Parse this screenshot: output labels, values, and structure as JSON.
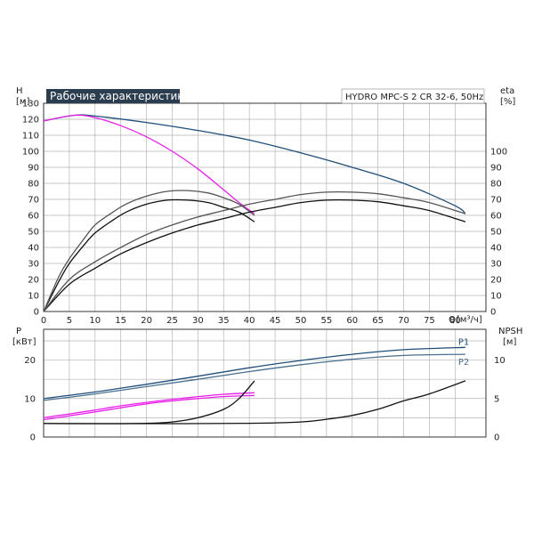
{
  "chart_data": [
    {
      "type": "line",
      "title": "Рабочие характеристики",
      "subtitle": "HYDRO MPC-S 2 CR 32-6, 50Hz",
      "left_axis": {
        "label": "H",
        "unit": "[м]",
        "range": [
          0,
          130
        ],
        "ticks": [
          0,
          10,
          20,
          30,
          40,
          50,
          60,
          70,
          80,
          90,
          100,
          110,
          120,
          130
        ]
      },
      "right_axis": {
        "label": "eta",
        "unit": "[%]",
        "range": [
          0,
          130
        ],
        "ticks": [
          0,
          10,
          20,
          30,
          40,
          50,
          60,
          70,
          80,
          90,
          100
        ]
      },
      "x_axis": {
        "label": "Q",
        "unit": "[м³/ч]",
        "range": [
          0,
          86
        ],
        "ticks": [
          0,
          5,
          10,
          15,
          20,
          25,
          30,
          35,
          40,
          45,
          50,
          55,
          60,
          65,
          70,
          75,
          80
        ]
      },
      "grid": true,
      "series": [
        {
          "color": "#1f4e79",
          "axis": "H",
          "x": [
            0,
            6,
            10,
            20,
            30,
            40,
            50,
            60,
            70,
            80,
            82
          ],
          "y": [
            119,
            122.5,
            122,
            118,
            113,
            107,
            99,
            90,
            80,
            66,
            61
          ]
        },
        {
          "color": "#e81ee8",
          "axis": "H",
          "x": [
            0,
            6,
            10,
            15,
            20,
            25,
            30,
            35,
            38,
            41
          ],
          "y": [
            119,
            122.5,
            121,
            116,
            109,
            100,
            89,
            76,
            68,
            61
          ]
        },
        {
          "color": "#111111",
          "axis": "eta",
          "x": [
            0,
            3,
            5,
            8,
            10,
            13,
            16,
            20,
            24,
            28,
            32,
            35,
            38,
            41
          ],
          "y": [
            0,
            19,
            30,
            42,
            49,
            56,
            62,
            67,
            69.5,
            69.5,
            68,
            65,
            62,
            56
          ]
        },
        {
          "color": "#555555",
          "axis": "eta",
          "x": [
            0,
            3,
            5,
            8,
            10,
            13,
            16,
            20,
            24,
            28,
            32,
            35,
            38,
            41
          ],
          "y": [
            0,
            22,
            33,
            46,
            54,
            61,
            67,
            72,
            75,
            75.5,
            74,
            71,
            67,
            60
          ]
        },
        {
          "color": "#111111",
          "axis": "eta",
          "x": [
            0,
            5,
            10,
            15,
            20,
            25,
            30,
            35,
            40,
            45,
            50,
            55,
            60,
            65,
            70,
            75,
            82
          ],
          "y": [
            0,
            17,
            27,
            36,
            43,
            49,
            54,
            58,
            62,
            65,
            68,
            69.5,
            69.5,
            68.5,
            66,
            63,
            56
          ]
        },
        {
          "color": "#555555",
          "axis": "eta",
          "x": [
            0,
            5,
            10,
            15,
            20,
            25,
            30,
            35,
            40,
            45,
            50,
            55,
            60,
            65,
            70,
            75,
            82
          ],
          "y": [
            0,
            20,
            31,
            40,
            48,
            54,
            59,
            63,
            67,
            70,
            73,
            74.5,
            74.5,
            73.5,
            71,
            68,
            61
          ]
        }
      ]
    },
    {
      "type": "line",
      "left_axis": {
        "label": "P",
        "unit": "[кВт]",
        "range": [
          0,
          28
        ],
        "ticks": [
          0,
          10,
          20
        ]
      },
      "right_axis": {
        "label": "NPSH",
        "unit": "[м]",
        "range": [
          0,
          14
        ],
        "ticks": [
          0,
          5,
          10
        ]
      },
      "x_axis": {
        "range": [
          0,
          86
        ]
      },
      "grid": true,
      "series": [
        {
          "name": "P1",
          "color": "#1f4e79",
          "axis": "P",
          "x": [
            0,
            10,
            20,
            30,
            40,
            50,
            60,
            70,
            82
          ],
          "y": [
            10,
            11.7,
            13.7,
            15.8,
            18,
            19.9,
            21.5,
            22.7,
            23.3
          ]
        },
        {
          "name": "P2",
          "color": "#4a6f8f",
          "axis": "P",
          "x": [
            0,
            10,
            20,
            30,
            40,
            50,
            60,
            70,
            82
          ],
          "y": [
            9.5,
            11.2,
            13.1,
            15,
            17,
            18.8,
            20.2,
            21.2,
            21.5
          ]
        },
        {
          "color": "#e81ee8",
          "axis": "P",
          "x": [
            0,
            5,
            10,
            15,
            20,
            25,
            30,
            35,
            41
          ],
          "y": [
            5,
            6,
            7,
            8.1,
            9,
            9.8,
            10.5,
            11.1,
            11.5
          ]
        },
        {
          "color": "#e81ee8",
          "axis": "P",
          "x": [
            0,
            5,
            10,
            15,
            20,
            25,
            30,
            35,
            41
          ],
          "y": [
            4.5,
            5.5,
            6.5,
            7.6,
            8.6,
            9.4,
            10,
            10.5,
            10.8
          ]
        },
        {
          "color": "#111111",
          "axis": "NPSH",
          "x": [
            0,
            10,
            20,
            25,
            30,
            35,
            38,
            41
          ],
          "y": [
            1.75,
            1.73,
            1.78,
            1.95,
            2.5,
            3.6,
            5,
            7.3
          ]
        },
        {
          "color": "#111111",
          "axis": "NPSH",
          "x": [
            0,
            20,
            40,
            50,
            55,
            60,
            65,
            70,
            75,
            82
          ],
          "y": [
            1.75,
            1.73,
            1.78,
            1.95,
            2.3,
            2.8,
            3.6,
            4.7,
            5.6,
            7.3
          ]
        }
      ]
    }
  ]
}
